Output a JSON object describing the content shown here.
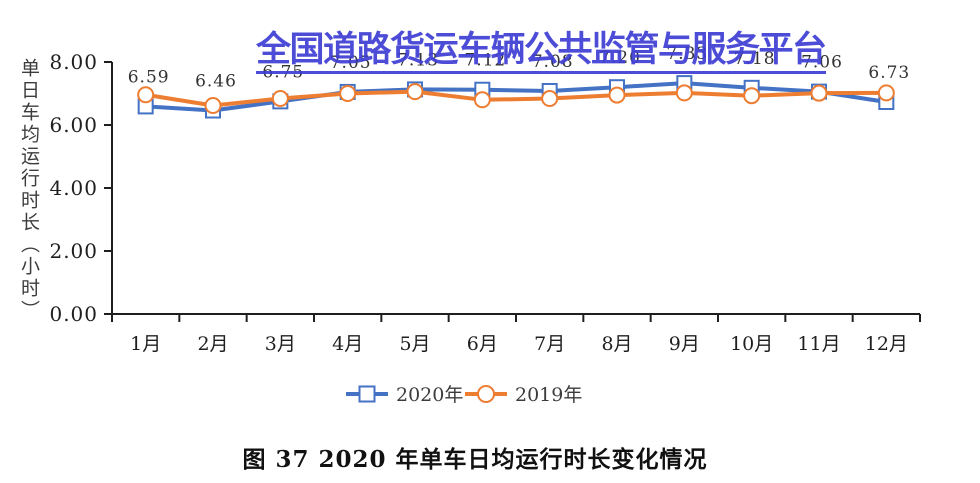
{
  "watermark": {
    "text": "全国道路货运车辆公共监管与服务平台",
    "color": "#3d3dd4"
  },
  "caption": "图 37 2020 年单车日均运行时长变化情况",
  "chart_data": {
    "type": "line",
    "title": "",
    "xlabel": "",
    "ylabel": "单日车均运行时长（小时）",
    "categories": [
      "1月",
      "2月",
      "3月",
      "4月",
      "5月",
      "6月",
      "7月",
      "8月",
      "9月",
      "10月",
      "11月",
      "12月"
    ],
    "ylim": [
      0,
      8
    ],
    "yticks": [
      0,
      2,
      4,
      6,
      8
    ],
    "ytick_labels": [
      "0.00",
      "2.00",
      "4.00",
      "6.00",
      "8.00"
    ],
    "grid": false,
    "legend_position": "bottom",
    "axis_color": "#1f1f1f",
    "label_color": "#333333",
    "series": [
      {
        "name": "2020年",
        "color": "#4472c4",
        "marker": "square",
        "show_labels": true,
        "values": [
          6.59,
          6.46,
          6.75,
          7.05,
          7.13,
          7.12,
          7.08,
          7.2,
          7.33,
          7.18,
          7.06,
          6.73
        ]
      },
      {
        "name": "2019年",
        "color": "#ed7d31",
        "marker": "circle",
        "show_labels": false,
        "values": [
          6.96,
          6.62,
          6.84,
          7.0,
          7.06,
          6.8,
          6.84,
          6.95,
          7.02,
          6.93,
          7.01,
          7.02
        ]
      }
    ],
    "data_labels_fully_visible": [
      "6.59",
      "6.46",
      "6.75",
      "7.06",
      "6.73"
    ]
  }
}
